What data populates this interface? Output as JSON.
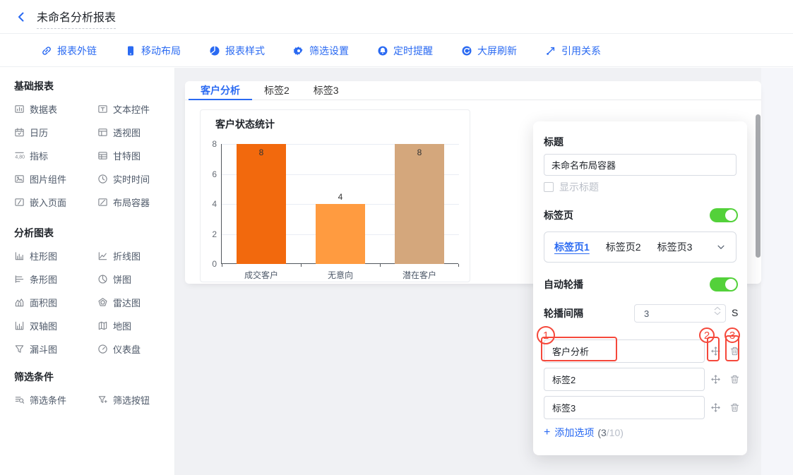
{
  "header": {
    "title": "未命名分析报表"
  },
  "toolbar": {
    "items": [
      {
        "label": "报表外链",
        "icon": "link-icon"
      },
      {
        "label": "移动布局",
        "icon": "mobile-icon"
      },
      {
        "label": "报表样式",
        "icon": "pie-style-icon"
      },
      {
        "label": "筛选设置",
        "icon": "gear-icon"
      },
      {
        "label": "定时提醒",
        "icon": "bell-icon"
      },
      {
        "label": "大屏刷新",
        "icon": "refresh-icon"
      },
      {
        "label": "引用关系",
        "icon": "relation-icon"
      }
    ]
  },
  "sidebar": {
    "sections": [
      {
        "title": "基础报表",
        "items": [
          {
            "label": "数据表"
          },
          {
            "label": "文本控件"
          },
          {
            "label": "日历"
          },
          {
            "label": "透视图"
          },
          {
            "label": "指标"
          },
          {
            "label": "甘特图"
          },
          {
            "label": "图片组件"
          },
          {
            "label": "实时时间"
          },
          {
            "label": "嵌入页面"
          },
          {
            "label": "布局容器"
          }
        ]
      },
      {
        "title": "分析图表",
        "items": [
          {
            "label": "柱形图"
          },
          {
            "label": "折线图"
          },
          {
            "label": "条形图"
          },
          {
            "label": "饼图"
          },
          {
            "label": "面积图"
          },
          {
            "label": "雷达图"
          },
          {
            "label": "双轴图"
          },
          {
            "label": "地图"
          },
          {
            "label": "漏斗图"
          },
          {
            "label": "仪表盘"
          }
        ]
      },
      {
        "title": "筛选条件",
        "items": [
          {
            "label": "筛选条件"
          },
          {
            "label": "筛选按钮"
          }
        ]
      }
    ]
  },
  "canvas": {
    "tabs": [
      {
        "label": "客户分析",
        "active": true
      },
      {
        "label": "标签2",
        "active": false
      },
      {
        "label": "标签3",
        "active": false
      }
    ]
  },
  "chart_data": {
    "type": "bar",
    "title": "客户状态统计",
    "categories": [
      "成交客户",
      "无意向",
      "潜在客户"
    ],
    "values": [
      8,
      4,
      8
    ],
    "data_labels": [
      "8",
      "4",
      "8"
    ],
    "label_positions": [
      "inside-top",
      "above",
      "inside-top"
    ],
    "bar_colors": [
      "#F2690D",
      "#FF9B40",
      "#D4A77C"
    ],
    "xlabel": "",
    "ylabel": "",
    "ylim": [
      0,
      8
    ],
    "yticks": [
      0,
      2,
      4,
      6,
      8
    ],
    "grid": true,
    "legend": "none"
  },
  "panel": {
    "title_label": "标题",
    "title_value": "未命名布局容器",
    "show_title_label": "显示标题",
    "show_title_checked": false,
    "tabs_label": "标签页",
    "tabs_enabled": true,
    "tab_pages": [
      "标签页1",
      "标签页2",
      "标签页3"
    ],
    "active_tab_page": "标签页1",
    "autoplay_label": "自动轮播",
    "autoplay_enabled": true,
    "interval_label": "轮播间隔",
    "interval_value": "3",
    "interval_unit": "S",
    "options": [
      {
        "value": "客户分析"
      },
      {
        "value": "标签2"
      },
      {
        "value": "标签3"
      }
    ],
    "add_option": {
      "plus": "+",
      "label": "添加选项",
      "count_dark": "(3",
      "count_light": "/10)"
    },
    "annotations": {
      "n1": "1",
      "n2": "2",
      "n3": "3"
    }
  },
  "colors": {
    "accent_blue": "#2A6AF2",
    "toggle_green": "#53D13A",
    "annotation_red": "#F5483B",
    "canvas_bg": "#F0F1F4",
    "axis_dark": "#51565C"
  }
}
